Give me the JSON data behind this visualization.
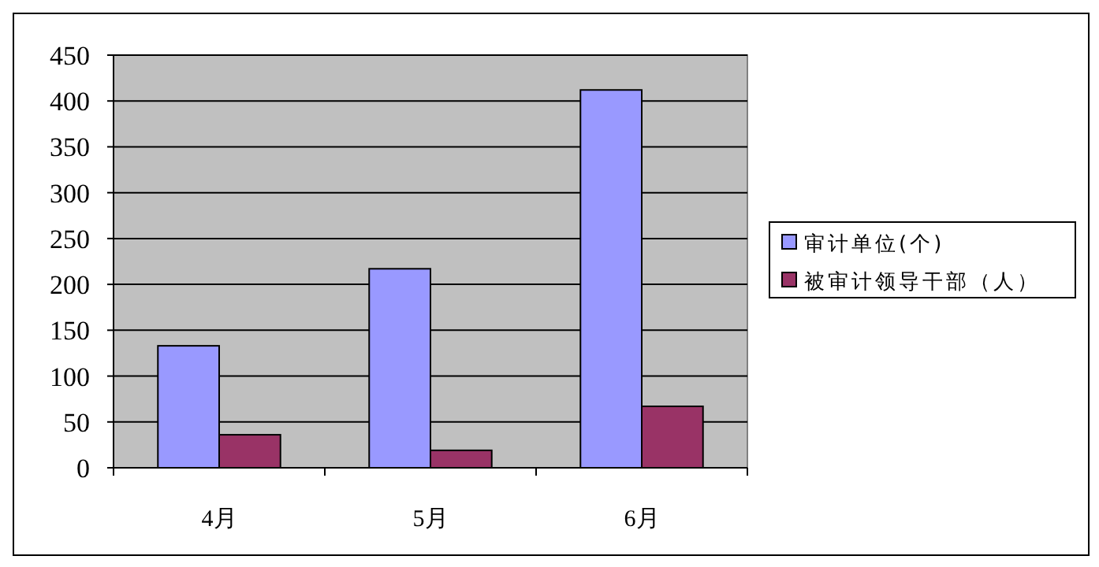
{
  "chart_data": {
    "type": "bar",
    "categories": [
      "4月",
      "5月",
      "6月"
    ],
    "series": [
      {
        "name": "审计单位(个)",
        "color": "#9999ff",
        "values": [
          133,
          217,
          412
        ]
      },
      {
        "name": "被审计领导干部（人）",
        "color": "#993366",
        "values": [
          36,
          19,
          67
        ]
      }
    ],
    "ylim": [
      0,
      450
    ],
    "yticks": [
      0,
      50,
      100,
      150,
      200,
      250,
      300,
      350,
      400,
      450
    ],
    "grid": "y",
    "legend": "right"
  }
}
